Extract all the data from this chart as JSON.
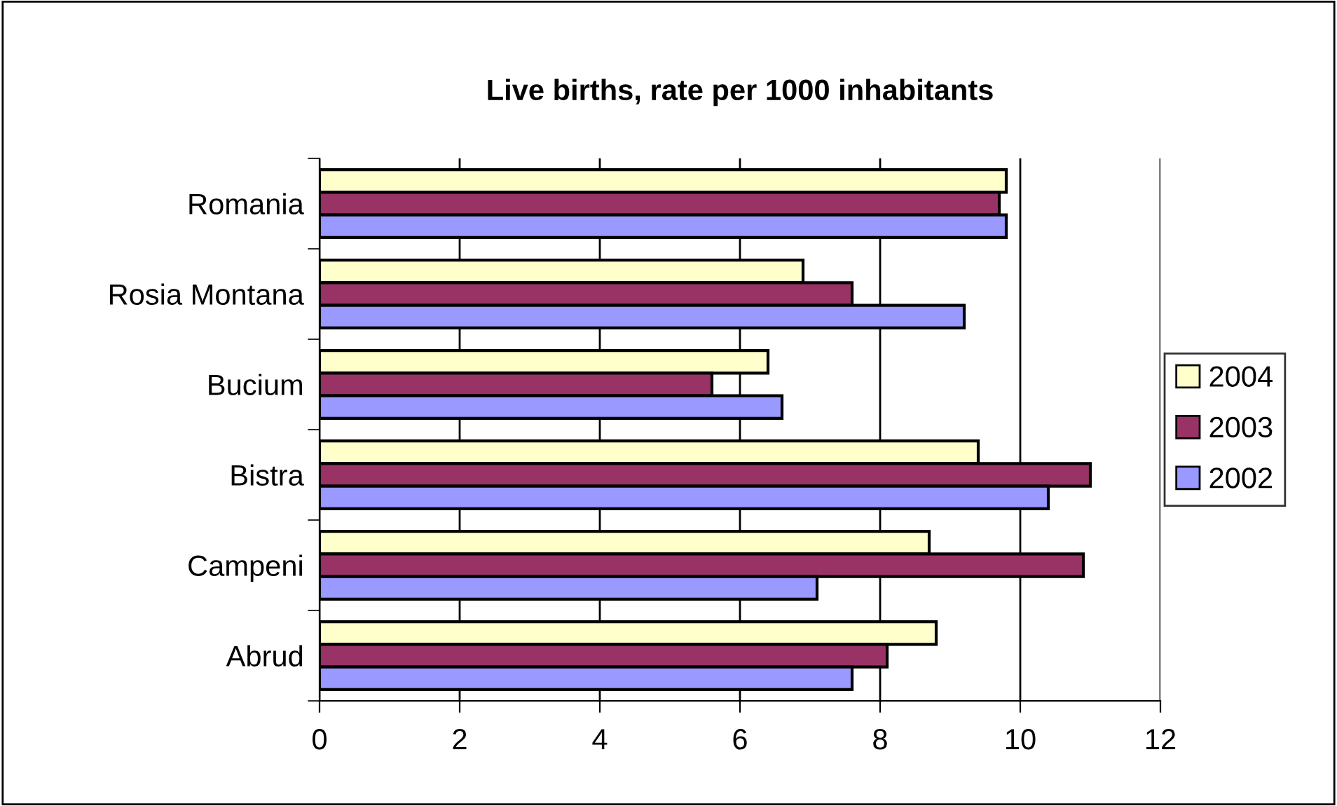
{
  "chart_data": {
    "type": "bar",
    "orientation": "horizontal",
    "title": "Live births, rate per 1000 inhabitants",
    "categories": [
      "Romania",
      "Rosia Montana",
      "Bucium",
      "Bistra",
      "Campeni",
      "Abrud"
    ],
    "series": [
      {
        "name": "2004",
        "color": "#ffffcc",
        "values": [
          9.8,
          6.9,
          6.4,
          9.4,
          8.7,
          8.8
        ]
      },
      {
        "name": "2003",
        "color": "#993366",
        "values": [
          9.7,
          7.6,
          5.6,
          11.0,
          10.9,
          8.1
        ]
      },
      {
        "name": "2002",
        "color": "#9999ff",
        "values": [
          9.8,
          9.2,
          6.6,
          10.4,
          7.1,
          7.6
        ]
      }
    ],
    "xlim": [
      0,
      12
    ],
    "xticks": [
      0,
      2,
      4,
      6,
      8,
      10,
      12
    ],
    "grid": "x",
    "legend": "right"
  }
}
